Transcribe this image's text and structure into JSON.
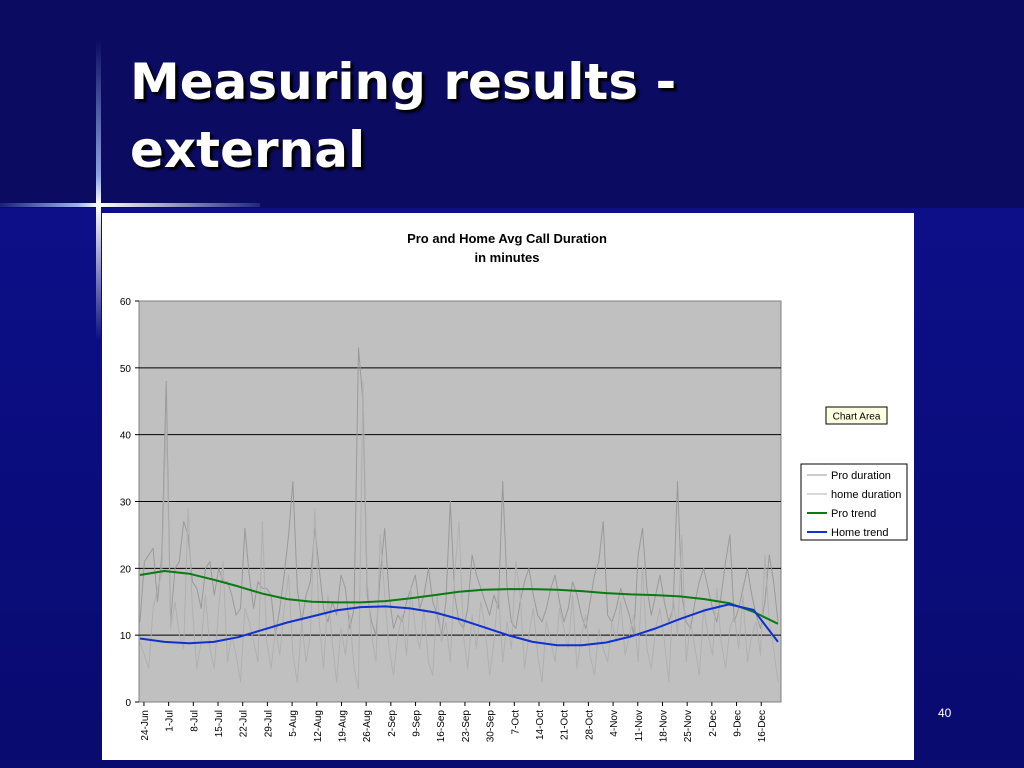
{
  "slide": {
    "title_line1": "Measuring results -",
    "title_line2": "external",
    "page_number": "40"
  },
  "chart_data": {
    "type": "line",
    "title": "Pro and Home Avg Call Duration",
    "subtitle": "in minutes",
    "ylim": [
      0,
      60
    ],
    "yticks": [
      0,
      10,
      20,
      30,
      40,
      50,
      60
    ],
    "grid": true,
    "plot_background": "#c0c0c0",
    "x_tick_labels": [
      "24-Jun",
      "1-Jul",
      "8-Jul",
      "15-Jul",
      "22-Jul",
      "29-Jul",
      "5-Aug",
      "12-Aug",
      "19-Aug",
      "26-Aug",
      "2-Sep",
      "9-Sep",
      "16-Sep",
      "23-Sep",
      "30-Sep",
      "7-Oct",
      "14-Oct",
      "21-Oct",
      "28-Oct",
      "4-Nov",
      "11-Nov",
      "18-Nov",
      "25-Nov",
      "2-Dec",
      "9-Dec",
      "16-Dec"
    ],
    "legend_position": "right",
    "tooltip": "Chart Area",
    "series": [
      {
        "name": "Pro duration",
        "color": "#9a9a9a",
        "values": [
          12,
          21,
          22,
          23,
          15,
          22,
          48,
          12,
          20,
          21,
          27,
          25,
          18,
          17,
          14,
          20,
          21,
          16,
          20,
          18,
          18,
          16,
          13,
          14,
          26,
          19,
          14,
          18,
          17,
          17,
          16,
          10,
          14,
          19,
          25,
          33,
          17,
          12,
          16,
          18,
          26,
          20,
          14,
          12,
          15,
          13,
          19,
          17,
          11,
          14,
          53,
          45,
          16,
          12,
          10,
          19,
          26,
          16,
          11,
          13,
          12,
          15,
          17,
          19,
          14,
          16,
          20,
          15,
          13,
          10,
          15,
          30,
          16,
          12,
          11,
          14,
          22,
          19,
          17,
          15,
          13,
          16,
          14,
          33,
          17,
          12,
          11,
          15,
          18,
          20,
          16,
          13,
          12,
          14,
          17,
          19,
          15,
          12,
          14,
          18,
          16,
          13,
          11,
          15,
          19,
          21,
          27,
          13,
          12,
          14,
          17,
          15,
          13,
          10,
          22,
          26,
          17,
          13,
          16,
          19,
          15,
          12,
          14,
          33,
          16,
          12,
          11,
          15,
          18,
          20,
          17,
          14,
          12,
          16,
          21,
          25,
          12,
          14,
          17,
          20,
          16,
          13,
          11,
          15,
          22,
          18,
          12
        ]
      },
      {
        "name": "home duration",
        "color": "#b0b0b0",
        "values": [
          9,
          7,
          5,
          14,
          17,
          19,
          43,
          11,
          15,
          10,
          8,
          29,
          14,
          5,
          9,
          16,
          8,
          5,
          14,
          21,
          6,
          10,
          7,
          3,
          14,
          12,
          9,
          6,
          27,
          9,
          5,
          11,
          7,
          14,
          19,
          7,
          3,
          12,
          6,
          10,
          29,
          12,
          5,
          16,
          9,
          3,
          11,
          7,
          13,
          5,
          2,
          48,
          18,
          10,
          6,
          25,
          16,
          8,
          4,
          10,
          13,
          7,
          17,
          11,
          8,
          14,
          6,
          4,
          16,
          9,
          12,
          6,
          19,
          27,
          10,
          5,
          13,
          8,
          15,
          11,
          4,
          9,
          17,
          6,
          12,
          8,
          21,
          16,
          5,
          10,
          14,
          7,
          3,
          12,
          9,
          6,
          14,
          11,
          8,
          16,
          5,
          10,
          13,
          7,
          4,
          11,
          8,
          6,
          12,
          9,
          15,
          7,
          10,
          13,
          6,
          20,
          8,
          5,
          11,
          14,
          9,
          3,
          16,
          10,
          25,
          6,
          12,
          8,
          4,
          14,
          10,
          7,
          17,
          9,
          5,
          11,
          13,
          8,
          16,
          6,
          10,
          12,
          7,
          22,
          12,
          8,
          3
        ]
      },
      {
        "name": "Pro trend",
        "color": "#0a7a12",
        "values": [
          19.0,
          19.6,
          19.2,
          18.3,
          17.3,
          16.2,
          15.4,
          15.0,
          14.9,
          14.9,
          15.1,
          15.5,
          16.0,
          16.5,
          16.8,
          16.9,
          16.9,
          16.8,
          16.6,
          16.3,
          16.1,
          16.0,
          15.8,
          15.4,
          14.8,
          13.5,
          11.7
        ]
      },
      {
        "name": "Home trend",
        "color": "#1030d0",
        "values": [
          9.5,
          9.0,
          8.8,
          9.0,
          9.7,
          10.8,
          11.9,
          12.8,
          13.7,
          14.2,
          14.3,
          14.0,
          13.4,
          12.4,
          11.2,
          10.0,
          9.0,
          8.5,
          8.5,
          8.9,
          9.8,
          11.0,
          12.4,
          13.7,
          14.6,
          13.8,
          9.0
        ]
      }
    ]
  }
}
